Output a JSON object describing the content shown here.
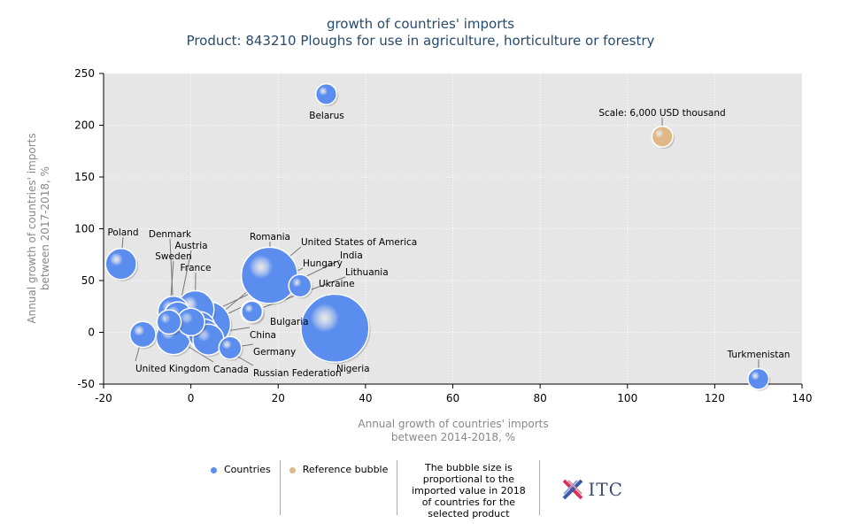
{
  "chart_data": {
    "type": "scatter",
    "title": "growth of countries' imports",
    "subtitle": "Product: 843210 Ploughs for use in agriculture, horticulture or forestry",
    "xlabel": "Annual growth of countries' imports between 2014-2018, %",
    "xlabel_lines": [
      "Annual growth of countries' imports",
      "between 2014-2018, %"
    ],
    "ylabel_lines": [
      "Annual growth of countries' imports",
      "between 2017-2018, %"
    ],
    "xlim": [
      -20,
      140
    ],
    "ylim": [
      -50,
      250
    ],
    "xticks": [
      -20,
      0,
      20,
      40,
      60,
      80,
      100,
      120,
      140
    ],
    "yticks": [
      -50,
      0,
      50,
      100,
      150,
      200,
      250
    ],
    "grid": true,
    "legend_position": "bottom",
    "series": [
      {
        "name": "Countries",
        "color": "#5b8def",
        "points": [
          {
            "label": "Belarus",
            "x": 31,
            "y": 230,
            "size": 4
          },
          {
            "label": "Poland",
            "x": -16,
            "y": 66,
            "size": 10
          },
          {
            "label": "Denmark",
            "x": -4,
            "y": 20,
            "size": 10
          },
          {
            "label": "Austria",
            "x": -3,
            "y": 16,
            "size": 8
          },
          {
            "label": "Sweden",
            "x": -5,
            "y": 10,
            "size": 6
          },
          {
            "label": "France",
            "x": 1,
            "y": 22,
            "size": 14
          },
          {
            "label": "Romania",
            "x": 18,
            "y": 55,
            "size": 25
          },
          {
            "label": "United States of America",
            "x": 4,
            "y": 8,
            "size": 18
          },
          {
            "label": "Hungary",
            "x": 0,
            "y": 10,
            "size": 8
          },
          {
            "label": "India",
            "x": 2,
            "y": 5,
            "size": 10
          },
          {
            "label": "Lithuania",
            "x": 14,
            "y": 20,
            "size": 4
          },
          {
            "label": "Ukraine",
            "x": 25,
            "y": 45,
            "size": 5
          },
          {
            "label": "Bulgaria",
            "x": 14,
            "y": 20,
            "size": 5
          },
          {
            "label": "China",
            "x": 3,
            "y": -2,
            "size": 10
          },
          {
            "label": "Germany",
            "x": 9,
            "y": -15,
            "size": 5
          },
          {
            "label": "United Kingdom",
            "x": -11,
            "y": -2,
            "size": 7
          },
          {
            "label": "Canada",
            "x": -4,
            "y": -5,
            "size": 12
          },
          {
            "label": "Russian Federation",
            "x": 4,
            "y": -7,
            "size": 10
          },
          {
            "label": "Nigeria",
            "x": 33,
            "y": 4,
            "size": 32
          },
          {
            "label": "Turkmenistan",
            "x": 130,
            "y": -45,
            "size": 4
          }
        ]
      },
      {
        "name": "Reference bubble",
        "color": "#e0b887",
        "points": [
          {
            "label": "Scale: 6,000 USD thousand",
            "x": 108,
            "y": 189,
            "size": 4
          }
        ]
      }
    ]
  },
  "legend": {
    "countries": "Countries",
    "reference": "Reference bubble",
    "note": "The bubble size is proportional to the imported value in 2018 of countries for the selected product",
    "logo_text": "ITC"
  }
}
